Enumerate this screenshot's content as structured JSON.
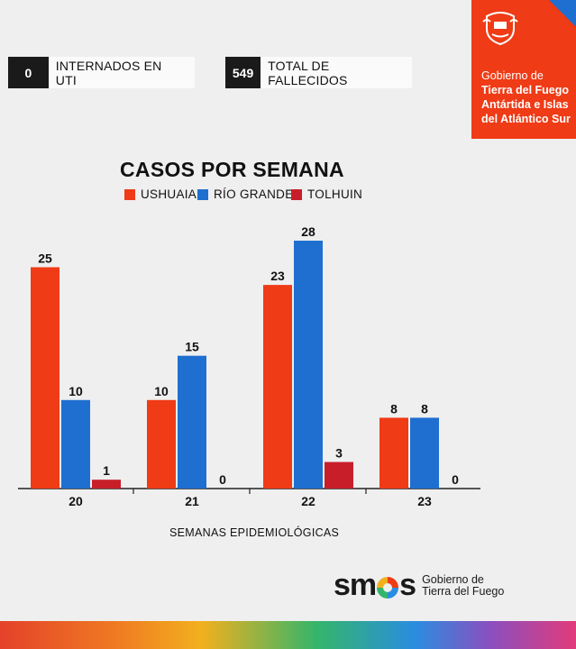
{
  "stats": [
    {
      "value": "0",
      "label": "INTERNADOS EN UTI"
    },
    {
      "value": "549",
      "label": "TOTAL DE FALLECIDOS"
    }
  ],
  "government": {
    "line1": "Gobierno de",
    "line2": "Tierra del Fuego",
    "line3": "Antártida e Islas",
    "line4": "del Atlántico Sur"
  },
  "brand": {
    "word_start": "s",
    "word_mid": "m",
    "word_end": "s",
    "sub1": "Gobierno de",
    "sub2": "Tierra del Fuego"
  },
  "colors": {
    "ushuaia": "#ef3b16",
    "rio_grande": "#1e6fd0",
    "tolhuin": "#c81e2a"
  },
  "chart_data": {
    "type": "bar",
    "title": "CASOS POR SEMANA",
    "xlabel": "SEMANAS EPIDEMIOLÓGICAS",
    "ylabel": "",
    "categories": [
      "20",
      "21",
      "22",
      "23"
    ],
    "series": [
      {
        "name": "USHUAIA",
        "values": [
          25,
          10,
          23,
          8
        ]
      },
      {
        "name": "RÍO GRANDE",
        "values": [
          10,
          15,
          28,
          8
        ]
      },
      {
        "name": "TOLHUIN",
        "values": [
          1,
          0,
          3,
          0
        ]
      }
    ],
    "ylim": [
      0,
      28
    ],
    "grid": false,
    "legend_position": "top"
  }
}
